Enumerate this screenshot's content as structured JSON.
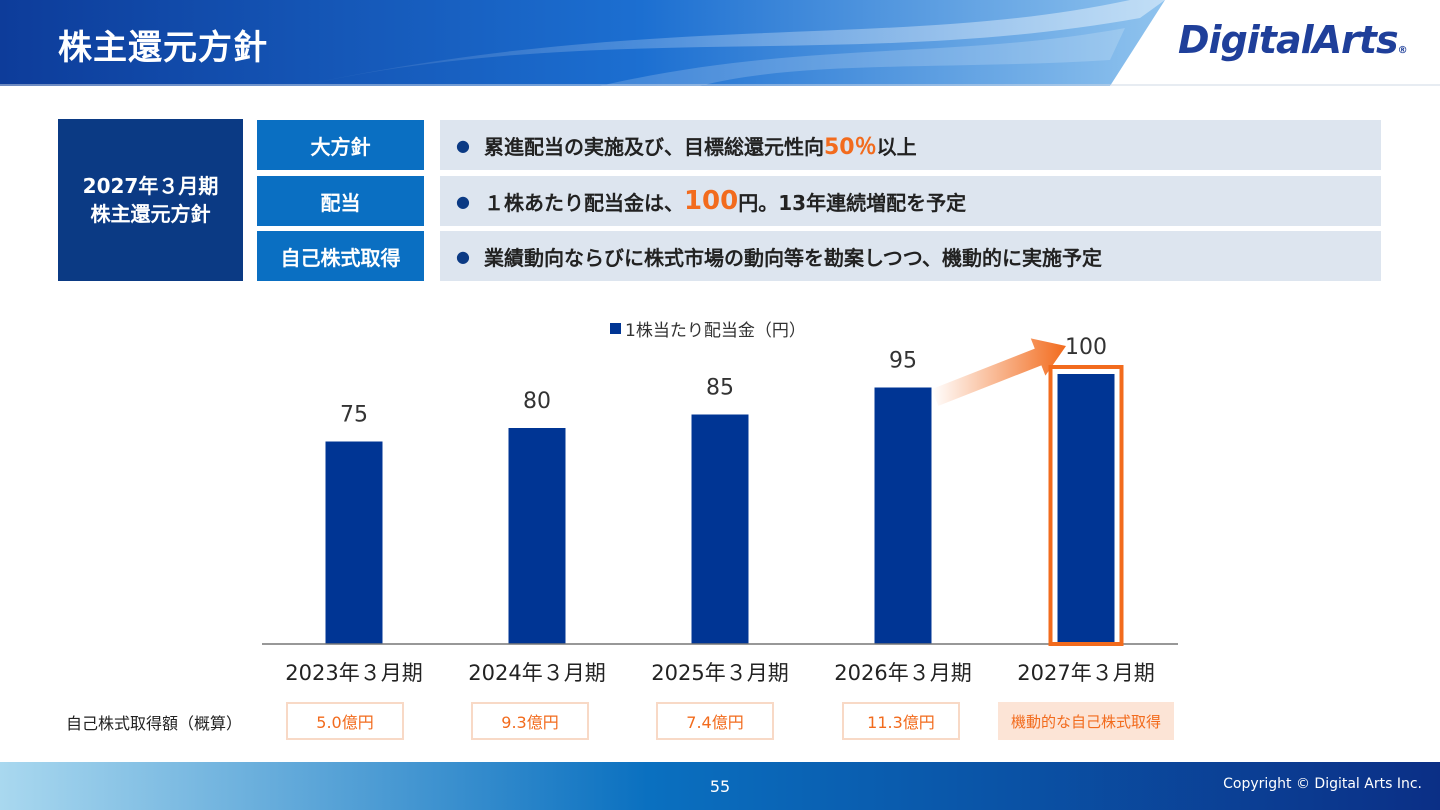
{
  "header": {
    "title": "株主還元方針",
    "logo_text": "DigitalArts",
    "logo_mark": "®"
  },
  "policy": {
    "period_line1": "2027年３月期",
    "period_line2": "株主還元方針",
    "rows": [
      {
        "label": "大方針",
        "text_before": "累進配当の実施及び、目標総還元性向",
        "highlight": "50％",
        "text_after": "以上"
      },
      {
        "label": "配当",
        "text_before": "１株あたり配当金は、",
        "highlight": "100",
        "text_after": "円。13年連続増配を予定"
      },
      {
        "label": "自己株式取得",
        "text_before": "業績動向ならびに株式市場の動向等を勘案しつつ、機動的に実施予定",
        "highlight": "",
        "text_after": ""
      }
    ]
  },
  "chart_data": {
    "type": "bar",
    "title": "",
    "legend": [
      "1株当たり配当金（円）"
    ],
    "categories": [
      "2023年３月期",
      "2024年３月期",
      "2025年３月期",
      "2026年３月期",
      "2027年３月期"
    ],
    "series": [
      {
        "name": "1株当たり配当金（円）",
        "values": [
          75,
          80,
          85,
          95,
          100
        ]
      }
    ],
    "ylim": [
      0,
      100
    ],
    "grid": false,
    "legend_position": "top-center",
    "bar_color": "#003594",
    "highlight_color": "#f26b1d"
  },
  "buyback": {
    "label": "自己株式取得額（概算）",
    "values": [
      "5.0億円",
      "9.3億円",
      "7.4億円",
      "11.3億円",
      "機動的な自己株式取得"
    ]
  },
  "footer": {
    "page_number": "55",
    "copyright": "Copyright © Digital Arts Inc."
  },
  "colors": {
    "navy": "#0b3a84",
    "blue": "#0a6fc2",
    "light_panel": "#dde5ef",
    "accent_orange": "#f26b1d"
  }
}
